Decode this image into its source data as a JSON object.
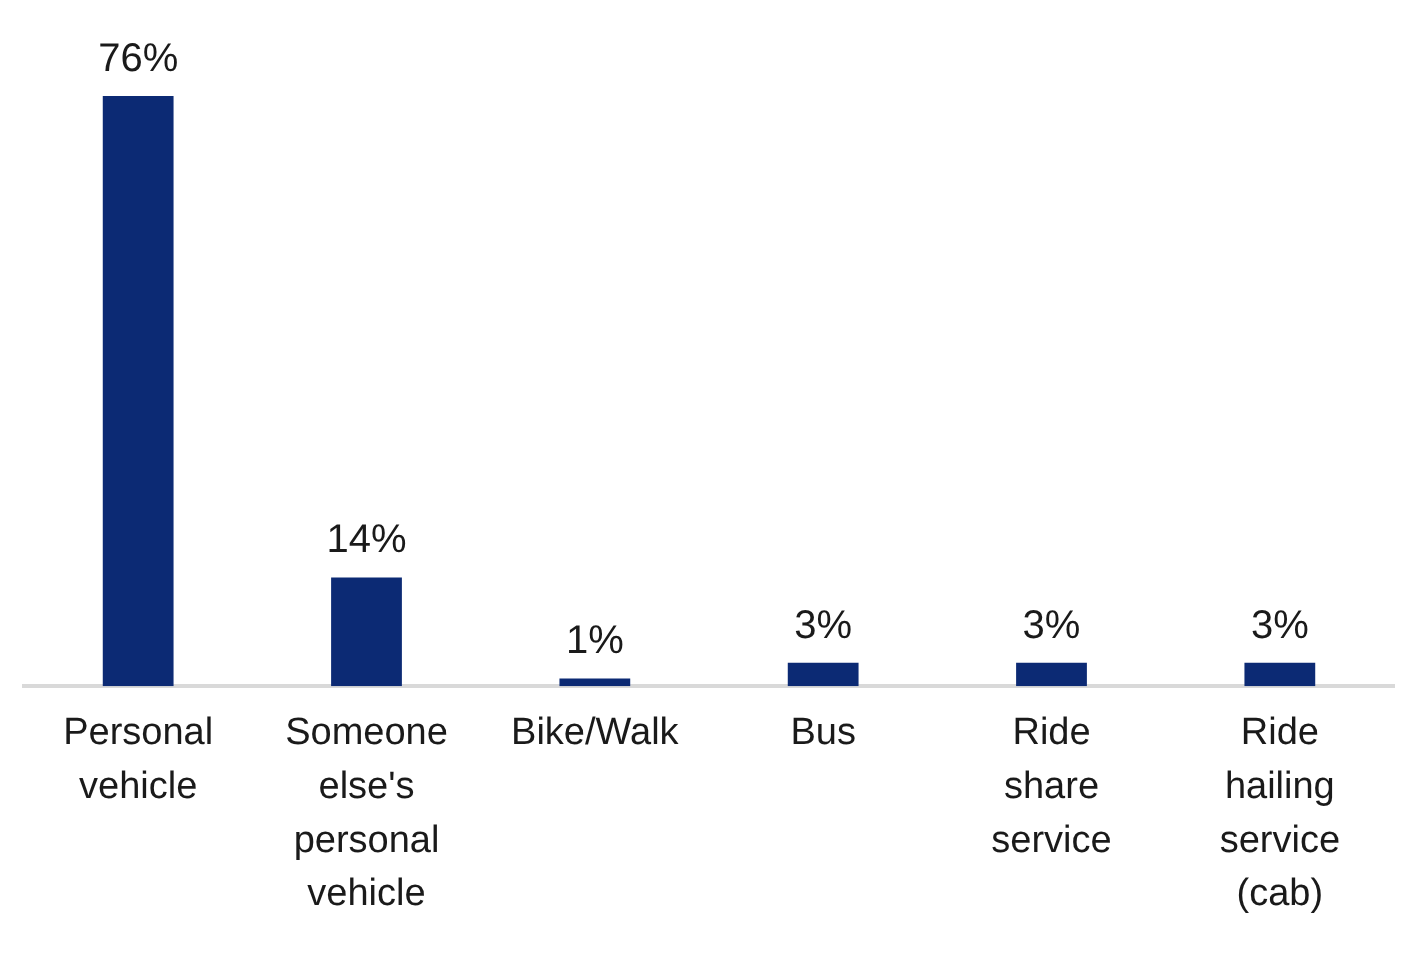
{
  "chart_data": {
    "type": "bar",
    "categories": [
      "Personal vehicle",
      "Someone else's personal vehicle",
      "Bike/Walk",
      "Bus",
      "Ride share service",
      "Ride hailing service (cab)"
    ],
    "values": [
      76,
      14,
      1,
      3,
      3,
      3
    ],
    "value_labels": [
      "76%",
      "14%",
      "1%",
      "3%",
      "3%",
      "3%"
    ],
    "color": "#0c2a74",
    "grid": false,
    "legend": false
  }
}
